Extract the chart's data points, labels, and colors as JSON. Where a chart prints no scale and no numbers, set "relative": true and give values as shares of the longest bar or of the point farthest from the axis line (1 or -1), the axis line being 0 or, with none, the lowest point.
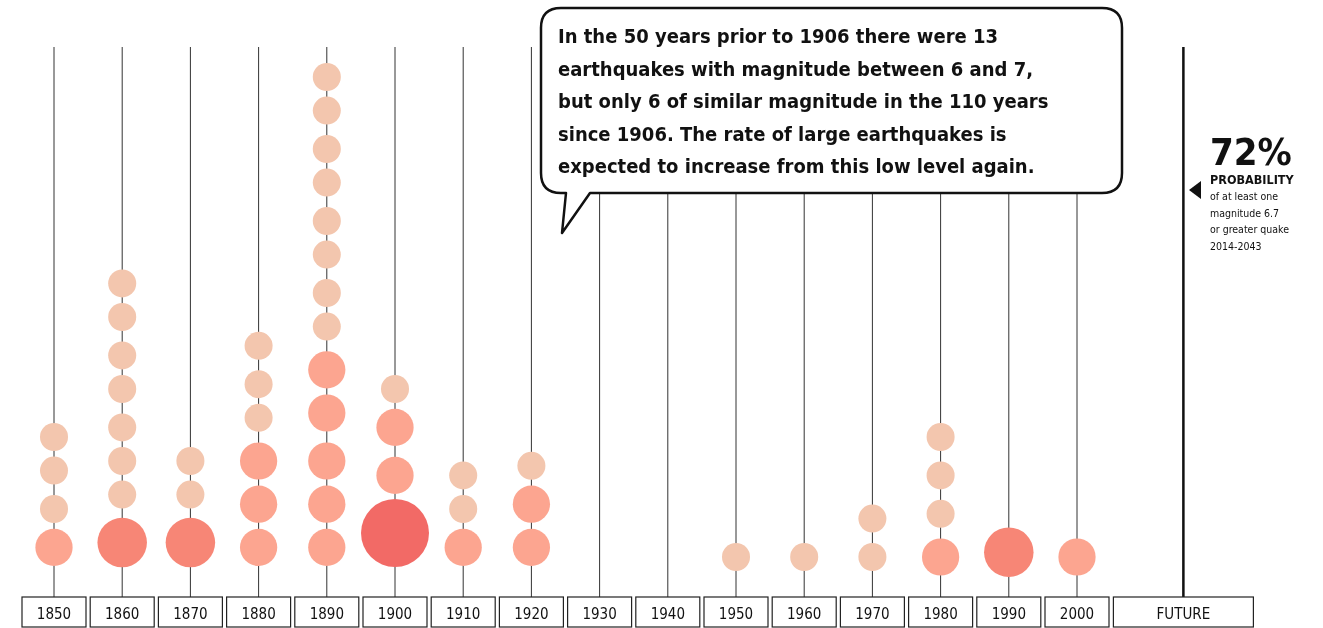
{
  "chart_data": {
    "type": "bubble",
    "relative": true,
    "grid": "x",
    "ref_lines": [
      {
        "axis": "x",
        "value": "FUTURE",
        "color": "#111111"
      }
    ],
    "categories": [
      "1850",
      "1860",
      "1870",
      "1880",
      "1890",
      "1900",
      "1910",
      "1920",
      "1930",
      "1940",
      "1950",
      "1960",
      "1970",
      "1980",
      "1990",
      "2000",
      "FUTURE"
    ],
    "series": [
      {
        "values": [
          0.02,
          0.03,
          0.03,
          0.02,
          0.02,
          0.05,
          0.02,
          0.02,
          null,
          null,
          0,
          0,
          0,
          0,
          0.01,
          0,
          null
        ],
        "sizes": [
          0.3,
          0.53,
          0.53,
          0.3,
          0.3,
          1,
          0.3,
          0.3,
          null,
          null,
          0.17,
          0.17,
          0.17,
          0.3,
          0.53,
          0.3,
          null
        ],
        "colors": [
          "#fca590",
          "#f78676",
          "#f78676",
          "#fca590",
          "#fca590",
          "#f26a66",
          "#fca590",
          "#fca590",
          null,
          null,
          "#f3c6ae",
          "#f3c6ae",
          "#f3c6ae",
          "#fca590",
          "#f78676",
          "#fca590",
          null
        ]
      },
      {
        "values": [
          0.1,
          0.13,
          0.13,
          0.11,
          0.11,
          0.17,
          0.1,
          0.11,
          null,
          null,
          null,
          null,
          0.08,
          0.09,
          null,
          null,
          null
        ],
        "sizes": [
          0.17,
          0.17,
          0.17,
          0.3,
          0.3,
          0.3,
          0.17,
          0.3,
          null,
          null,
          null,
          null,
          0.17,
          0.17,
          null,
          null,
          null
        ],
        "colors": [
          "#f3c6ae",
          "#f3c6ae",
          "#f3c6ae",
          "#fca590",
          "#fca590",
          "#fca590",
          "#f3c6ae",
          "#fca590",
          null,
          null,
          null,
          null,
          "#f3c6ae",
          "#f3c6ae",
          null,
          null,
          null
        ]
      },
      {
        "values": [
          0.18,
          0.2,
          0.2,
          0.2,
          0.2,
          0.27,
          0.17,
          0.19,
          null,
          null,
          null,
          null,
          null,
          0.17,
          null,
          null,
          null
        ],
        "sizes": [
          0.17,
          0.17,
          0.17,
          0.3,
          0.3,
          0.3,
          0.17,
          0.17,
          null,
          null,
          null,
          null,
          null,
          0.17,
          null,
          null,
          null
        ],
        "colors": [
          "#f3c6ae",
          "#f3c6ae",
          "#f3c6ae",
          "#fca590",
          "#fca590",
          "#fca590",
          "#f3c6ae",
          "#f3c6ae",
          null,
          null,
          null,
          null,
          null,
          "#f3c6ae",
          null,
          null,
          null
        ]
      },
      {
        "values": [
          0.25,
          0.27,
          null,
          0.29,
          0.3,
          0.35,
          null,
          null,
          null,
          null,
          null,
          null,
          null,
          0.25,
          null,
          null,
          null
        ],
        "sizes": [
          0.17,
          0.17,
          null,
          0.17,
          0.3,
          0.17,
          null,
          null,
          null,
          null,
          null,
          null,
          null,
          0.17,
          null,
          null,
          null
        ],
        "colors": [
          "#f3c6ae",
          "#f3c6ae",
          null,
          "#f3c6ae",
          "#fca590",
          "#f3c6ae",
          null,
          null,
          null,
          null,
          null,
          null,
          null,
          "#f3c6ae",
          null,
          null,
          null
        ]
      },
      {
        "values": [
          null,
          0.35,
          null,
          0.36,
          0.39,
          null,
          null,
          null,
          null,
          null,
          null,
          null,
          null,
          null,
          null,
          null,
          null
        ],
        "sizes": [
          null,
          0.17,
          null,
          0.17,
          0.3,
          null,
          null,
          null,
          null,
          null,
          null,
          null,
          null,
          null,
          null,
          null,
          null
        ],
        "colors": [
          null,
          "#f3c6ae",
          null,
          "#f3c6ae",
          "#fca590",
          null,
          null,
          null,
          null,
          null,
          null,
          null,
          null,
          null,
          null,
          null,
          null
        ]
      },
      {
        "values": [
          null,
          0.42,
          null,
          0.44,
          0.48,
          null,
          null,
          null,
          null,
          null,
          null,
          null,
          null,
          null,
          null,
          null,
          null
        ],
        "sizes": [
          null,
          0.17,
          null,
          0.17,
          0.17,
          null,
          null,
          null,
          null,
          null,
          null,
          null,
          null,
          null,
          null,
          null,
          null
        ],
        "colors": [
          null,
          "#f3c6ae",
          null,
          "#f3c6ae",
          "#f3c6ae",
          null,
          null,
          null,
          null,
          null,
          null,
          null,
          null,
          null,
          null,
          null,
          null
        ]
      },
      {
        "values": [
          null,
          0.5,
          null,
          null,
          0.55,
          null,
          null,
          null,
          null,
          null,
          null,
          null,
          null,
          null,
          null,
          null,
          null
        ],
        "sizes": [
          null,
          0.17,
          null,
          null,
          0.17,
          null,
          null,
          null,
          null,
          null,
          null,
          null,
          null,
          null,
          null,
          null,
          null
        ],
        "colors": [
          null,
          "#f3c6ae",
          null,
          null,
          "#f3c6ae",
          null,
          null,
          null,
          null,
          null,
          null,
          null,
          null,
          null,
          null,
          null,
          null
        ]
      },
      {
        "values": [
          null,
          0.57,
          null,
          null,
          0.63,
          null,
          null,
          null,
          null,
          null,
          null,
          null,
          null,
          null,
          null,
          null,
          null
        ],
        "sizes": [
          null,
          0.17,
          null,
          null,
          0.17,
          null,
          null,
          null,
          null,
          null,
          null,
          null,
          null,
          null,
          null,
          null,
          null
        ],
        "colors": [
          null,
          "#f3c6ae",
          null,
          null,
          "#f3c6ae",
          null,
          null,
          null,
          null,
          null,
          null,
          null,
          null,
          null,
          null,
          null,
          null
        ]
      },
      {
        "values": [
          null,
          null,
          null,
          null,
          0.7,
          null,
          null,
          null,
          null,
          null,
          null,
          null,
          null,
          null,
          null,
          null,
          null
        ],
        "sizes": [
          null,
          null,
          null,
          null,
          0.17,
          null,
          null,
          null,
          null,
          null,
          null,
          null,
          null,
          null,
          null,
          null,
          null
        ],
        "colors": [
          null,
          null,
          null,
          null,
          "#f3c6ae",
          null,
          null,
          null,
          null,
          null,
          null,
          null,
          null,
          null,
          null,
          null,
          null
        ]
      },
      {
        "values": [
          null,
          null,
          null,
          null,
          0.78,
          null,
          null,
          null,
          null,
          null,
          null,
          null,
          null,
          null,
          null,
          null,
          null
        ],
        "sizes": [
          null,
          null,
          null,
          null,
          0.17,
          null,
          null,
          null,
          null,
          null,
          null,
          null,
          null,
          null,
          null,
          null,
          null
        ],
        "colors": [
          null,
          null,
          null,
          null,
          "#f3c6ae",
          null,
          null,
          null,
          null,
          null,
          null,
          null,
          null,
          null,
          null,
          null,
          null
        ]
      },
      {
        "values": [
          null,
          null,
          null,
          null,
          0.85,
          null,
          null,
          null,
          null,
          null,
          null,
          null,
          null,
          null,
          null,
          null,
          null
        ],
        "sizes": [
          null,
          null,
          null,
          null,
          0.17,
          null,
          null,
          null,
          null,
          null,
          null,
          null,
          null,
          null,
          null,
          null,
          null
        ],
        "colors": [
          null,
          null,
          null,
          null,
          "#f3c6ae",
          null,
          null,
          null,
          null,
          null,
          null,
          null,
          null,
          null,
          null,
          null,
          null
        ]
      },
      {
        "values": [
          null,
          null,
          null,
          null,
          0.93,
          null,
          null,
          null,
          null,
          null,
          null,
          null,
          null,
          null,
          null,
          null,
          null
        ],
        "sizes": [
          null,
          null,
          null,
          null,
          0.17,
          null,
          null,
          null,
          null,
          null,
          null,
          null,
          null,
          null,
          null,
          null,
          null
        ],
        "colors": [
          null,
          null,
          null,
          null,
          "#f3c6ae",
          null,
          null,
          null,
          null,
          null,
          null,
          null,
          null,
          null,
          null,
          null,
          null
        ]
      },
      {
        "values": [
          null,
          null,
          null,
          null,
          1,
          null,
          null,
          null,
          null,
          null,
          null,
          null,
          null,
          null,
          null,
          null,
          null
        ],
        "sizes": [
          null,
          null,
          null,
          null,
          0.17,
          null,
          null,
          null,
          null,
          null,
          null,
          null,
          null,
          null,
          null,
          null,
          null
        ],
        "colors": [
          null,
          null,
          null,
          null,
          "#f3c6ae",
          null,
          null,
          null,
          null,
          null,
          null,
          null,
          null,
          null,
          null,
          null,
          null
        ]
      }
    ],
    "annotations": [
      "In the 50 years prior to 1906 there were 13 earthquakes with magnitude between 6 and 7, but only 6 of similar magnitude in the 110 years since 1906. The rate of large earthquakes is expected to increase from this low level again.",
      "72%",
      "PROBABILITY",
      "of at least one magnitude 6.7 or greater quake 2014-2043"
    ]
  }
}
